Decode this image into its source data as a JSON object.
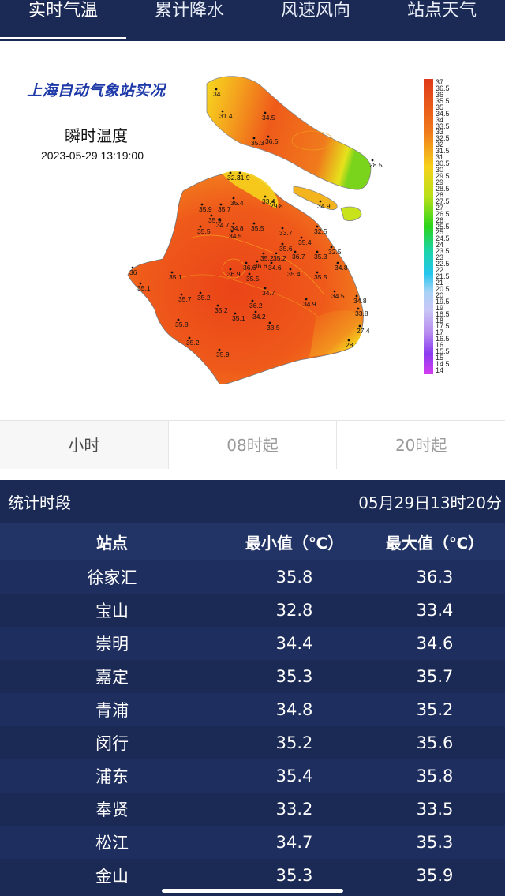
{
  "tabs": [
    {
      "label": "实时气温"
    },
    {
      "label": "累计降水"
    },
    {
      "label": "风速风向"
    },
    {
      "label": "站点天气"
    }
  ],
  "map": {
    "title": "上海自动气象站实况",
    "subtitle": "瞬时温度",
    "time": "2023-05-29 13:19:00",
    "scale_labels": [
      "37",
      "36.5",
      "36",
      "35.5",
      "35",
      "34.5",
      "34",
      "33.5",
      "33",
      "32.5",
      "32",
      "31.5",
      "31",
      "30.5",
      "30",
      "29.5",
      "29",
      "28.5",
      "28",
      "27.5",
      "27",
      "26.5",
      "26",
      "25.5",
      "25",
      "24.5",
      "24",
      "23.5",
      "23",
      "22.5",
      "22",
      "21.5",
      "21",
      "20.5",
      "20",
      "19.5",
      "19",
      "18.5",
      "18",
      "17.5",
      "17",
      "16.5",
      "16",
      "15.5",
      "15",
      "14.5",
      "14"
    ],
    "station_values": [
      "34",
      "31.4",
      "34.5",
      "36.5",
      "35.3",
      "28.5",
      "32.3",
      "31.9",
      "33.4",
      "29.8",
      "34.9",
      "35.9",
      "35.7",
      "35.4",
      "35.9",
      "34.7",
      "35.5",
      "34.5",
      "34.8",
      "35.5",
      "33.7",
      "32.5",
      "35.2",
      "35.6",
      "35.4",
      "36.7",
      "35.3",
      "32.5",
      "36.6",
      "35.1",
      "36.9",
      "36.6",
      "34.6",
      "35.2",
      "35.4",
      "34.8",
      "35.5",
      "35.1",
      "35.7",
      "35.2",
      "34.7",
      "35.5",
      "34.5",
      "34.8",
      "35.2",
      "36.2",
      "35.1",
      "34.2",
      "34.9",
      "33.8",
      "35.8",
      "33.5",
      "27.4",
      "35.2",
      "28.1",
      "35.9",
      "36"
    ]
  },
  "periods": [
    {
      "label": "小时"
    },
    {
      "label": "08时起"
    },
    {
      "label": "20时起"
    }
  ],
  "stats": {
    "period_label": "统计时段",
    "period_value": "05月29日13时20分",
    "columns": [
      "站点",
      "最小值（℃）",
      "最大值（℃）"
    ],
    "rows": [
      {
        "station": "徐家汇",
        "min": "35.8",
        "max": "36.3"
      },
      {
        "station": "宝山",
        "min": "32.8",
        "max": "33.4"
      },
      {
        "station": "崇明",
        "min": "34.4",
        "max": "34.6"
      },
      {
        "station": "嘉定",
        "min": "35.3",
        "max": "35.7"
      },
      {
        "station": "青浦",
        "min": "34.8",
        "max": "35.2"
      },
      {
        "station": "闵行",
        "min": "35.2",
        "max": "35.6"
      },
      {
        "station": "浦东",
        "min": "35.4",
        "max": "35.8"
      },
      {
        "station": "奉贤",
        "min": "33.2",
        "max": "33.5"
      },
      {
        "station": "松江",
        "min": "34.7",
        "max": "35.3"
      },
      {
        "station": "金山",
        "min": "35.3",
        "max": "35.9"
      }
    ]
  },
  "colors": {
    "nav_bg": "#1b2a55",
    "table_header_bg": "#223365",
    "map_hot": "#ef4a1a",
    "map_warm": "#f6c21c",
    "map_cool": "#2bd41c"
  }
}
